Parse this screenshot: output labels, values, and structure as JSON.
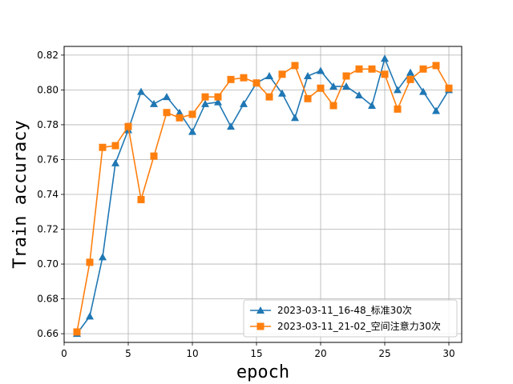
{
  "chart_data": {
    "type": "line",
    "xlabel": "epoch",
    "ylabel": "Train accuracy",
    "xlim": [
      0,
      31
    ],
    "ylim": [
      0.655,
      0.825
    ],
    "xticks": [
      0,
      5,
      10,
      15,
      20,
      25,
      30
    ],
    "yticks": [
      0.66,
      0.68,
      0.7,
      0.72,
      0.74,
      0.76,
      0.78,
      0.8,
      0.82
    ],
    "grid": true,
    "legend_position": "bottom-right",
    "x": [
      1,
      2,
      3,
      4,
      5,
      6,
      7,
      8,
      9,
      10,
      11,
      12,
      13,
      14,
      15,
      16,
      17,
      18,
      19,
      20,
      21,
      22,
      23,
      24,
      25,
      26,
      27,
      28,
      29,
      30
    ],
    "series": [
      {
        "name": "2023-03-11_16-48_标准30次",
        "color": "#1f77b4",
        "marker": "triangle",
        "values": [
          0.66,
          0.67,
          0.704,
          0.758,
          0.777,
          0.799,
          0.792,
          0.796,
          0.787,
          0.776,
          0.792,
          0.793,
          0.779,
          0.792,
          0.804,
          0.808,
          0.798,
          0.784,
          0.808,
          0.811,
          0.802,
          0.802,
          0.797,
          0.791,
          0.818,
          0.8,
          0.81,
          0.799,
          0.788,
          0.8
        ]
      },
      {
        "name": "2023-03-11_21-02_空间注意力30次",
        "color": "#ff7f0e",
        "marker": "square",
        "values": [
          0.661,
          0.701,
          0.767,
          0.768,
          0.779,
          0.737,
          0.762,
          0.787,
          0.784,
          0.786,
          0.796,
          0.796,
          0.806,
          0.807,
          0.804,
          0.796,
          0.809,
          0.814,
          0.795,
          0.801,
          0.791,
          0.808,
          0.812,
          0.812,
          0.809,
          0.789,
          0.806,
          0.812,
          0.814,
          0.801
        ]
      }
    ]
  }
}
